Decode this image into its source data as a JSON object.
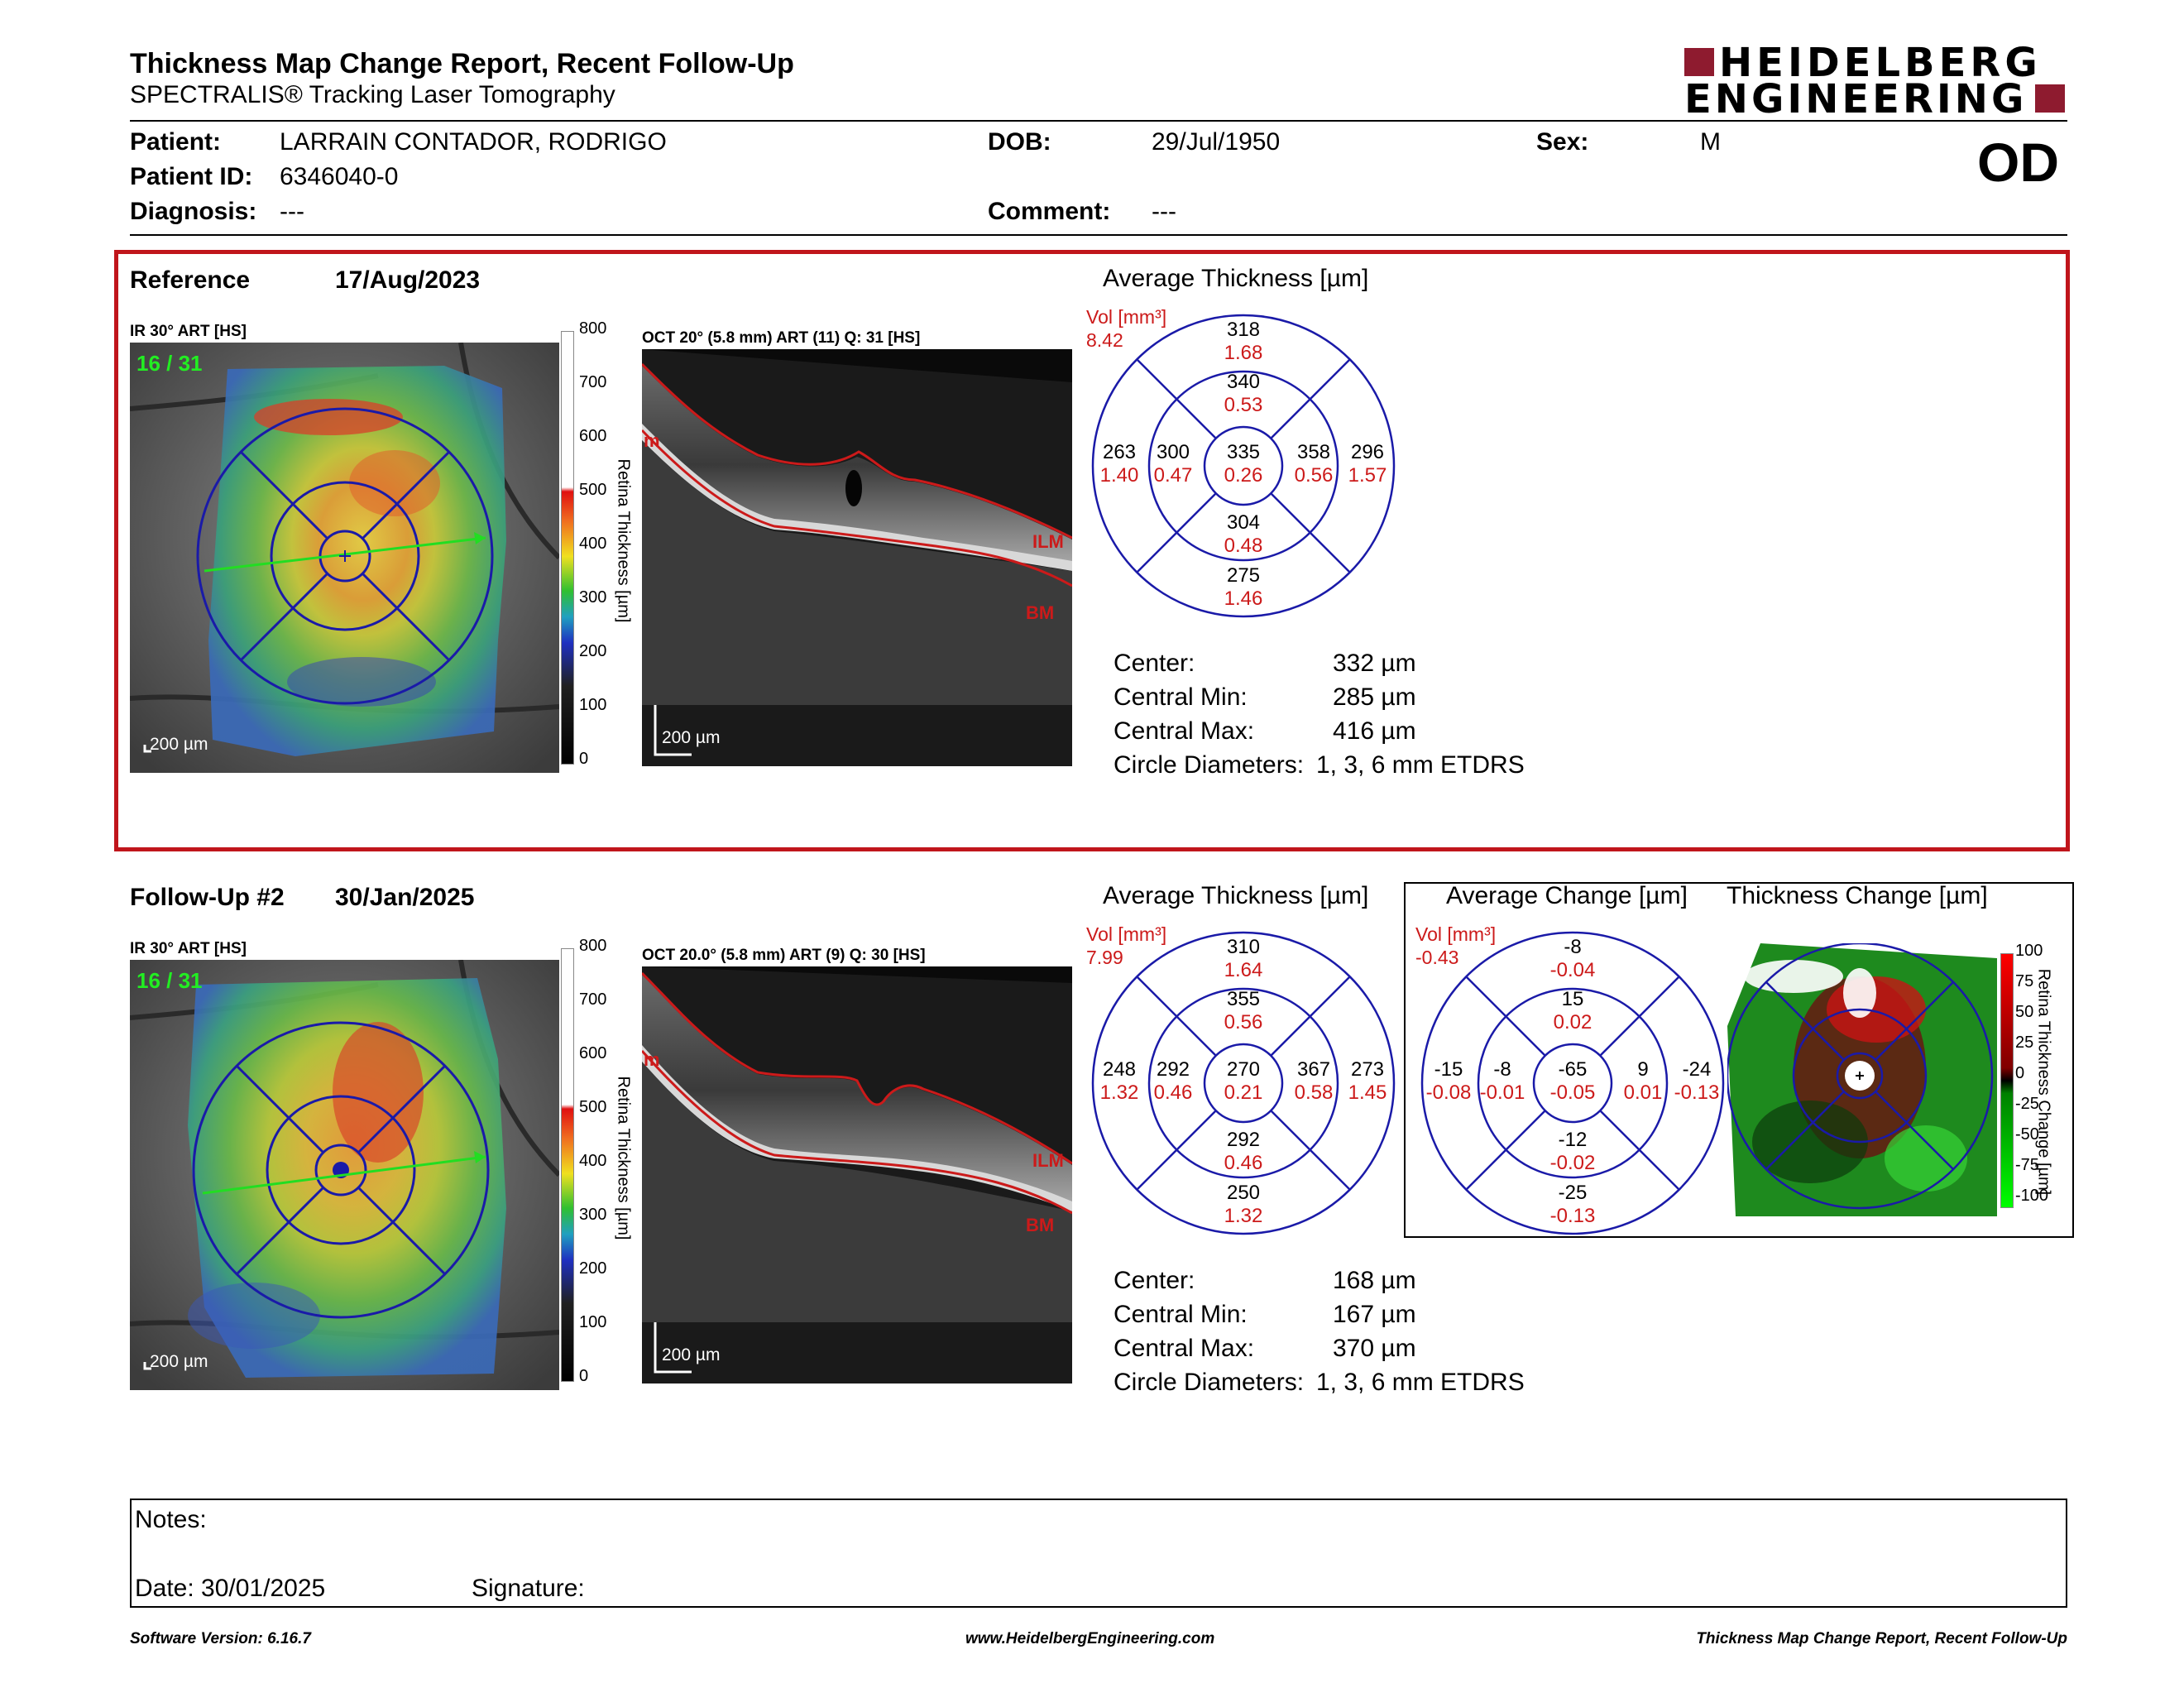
{
  "header": {
    "title": "Thickness Map Change Report, Recent Follow-Up",
    "subtitle": "SPECTRALIS® Tracking Laser Tomography",
    "logo_line1": "HEIDELBERG",
    "logo_line2": "ENGINEERING",
    "eye": "OD"
  },
  "patient": {
    "patient_label": "Patient:",
    "patient_value": "LARRAIN CONTADOR, RODRIGO",
    "id_label": "Patient ID:",
    "id_value": "6346040-0",
    "diagnosis_label": "Diagnosis:",
    "diagnosis_value": "---",
    "dob_label": "DOB:",
    "dob_value": "29/Jul/1950",
    "comment_label": "Comment:",
    "comment_value": "---",
    "sex_label": "Sex:",
    "sex_value": "M"
  },
  "reference": {
    "label": "Reference",
    "date": "17/Aug/2023",
    "ir_title": "IR 30° ART [HS]",
    "ir_counter": "16 / 31",
    "ir_scale": "200 µm",
    "oct_title": "OCT 20° (5.8 mm) ART (11) Q: 31 [HS]",
    "oct_scale": "200 µm",
    "colorbar_ticks": [
      "800",
      "700",
      "600",
      "500",
      "400",
      "300",
      "200",
      "100",
      "0"
    ],
    "colorbar_label": "Retina Thickness [µm]",
    "layer_ilm": "ILM",
    "layer_bm": "BM",
    "layer_m": "m",
    "avg_title": "Average Thickness [µm]",
    "vol_label": "Vol [mm³]",
    "vol_value": "8.42",
    "grid": {
      "outer_top": "318",
      "outer_top_vol": "1.68",
      "inner_top": "340",
      "inner_top_vol": "0.53",
      "outer_left": "263",
      "outer_left_vol": "1.40",
      "inner_left": "300",
      "inner_left_vol": "0.47",
      "center": "335",
      "center_vol": "0.26",
      "inner_right": "358",
      "inner_right_vol": "0.56",
      "outer_right": "296",
      "outer_right_vol": "1.57",
      "inner_bottom": "304",
      "inner_bottom_vol": "0.48",
      "outer_bottom": "275",
      "outer_bottom_vol": "1.46"
    },
    "stats": {
      "center_label": "Center:",
      "center_value": "332 µm",
      "min_label": "Central Min:",
      "min_value": "285 µm",
      "max_label": "Central Max:",
      "max_value": "416 µm",
      "diam_label": "Circle Diameters:",
      "diam_value": "1, 3, 6 mm ETDRS"
    }
  },
  "followup": {
    "label": "Follow-Up #2",
    "date": "30/Jan/2025",
    "ir_title": "IR 30° ART [HS]",
    "ir_counter": "16 / 31",
    "ir_scale": "200 µm",
    "oct_title": "OCT 20.0° (5.8 mm) ART (9) Q: 30 [HS]",
    "oct_scale": "200 µm",
    "colorbar_ticks": [
      "800",
      "700",
      "600",
      "500",
      "400",
      "300",
      "200",
      "100",
      "0"
    ],
    "colorbar_label": "Retina Thickness [µm]",
    "layer_ilm": "ILM",
    "layer_bm": "BM",
    "layer_m": "m",
    "avg_title": "Average Thickness [µm]",
    "vol_label": "Vol [mm³]",
    "vol_value": "7.99",
    "grid": {
      "outer_top": "310",
      "outer_top_vol": "1.64",
      "inner_top": "355",
      "inner_top_vol": "0.56",
      "outer_left": "248",
      "outer_left_vol": "1.32",
      "inner_left": "292",
      "inner_left_vol": "0.46",
      "center": "270",
      "center_vol": "0.21",
      "inner_right": "367",
      "inner_right_vol": "0.58",
      "outer_right": "273",
      "outer_right_vol": "1.45",
      "inner_bottom": "292",
      "inner_bottom_vol": "0.46",
      "outer_bottom": "250",
      "outer_bottom_vol": "1.32"
    },
    "stats": {
      "center_label": "Center:",
      "center_value": "168 µm",
      "min_label": "Central Min:",
      "min_value": "167 µm",
      "max_label": "Central Max:",
      "max_value": "370 µm",
      "diam_label": "Circle Diameters:",
      "diam_value": "1, 3, 6 mm ETDRS"
    },
    "change_title": "Average Change [µm]",
    "change_vol_label": "Vol [mm³]",
    "change_vol_value": "-0.43",
    "change_grid": {
      "outer_top": "-8",
      "outer_top_vol": "-0.04",
      "inner_top": "15",
      "inner_top_vol": "0.02",
      "outer_left": "-15",
      "outer_left_vol": "-0.08",
      "inner_left": "-8",
      "inner_left_vol": "-0.01",
      "center": "-65",
      "center_vol": "-0.05",
      "inner_right": "9",
      "inner_right_vol": "0.01",
      "outer_right": "-24",
      "outer_right_vol": "-0.13",
      "inner_bottom": "-12",
      "inner_bottom_vol": "-0.02",
      "outer_bottom": "-25",
      "outer_bottom_vol": "-0.13"
    },
    "thick_change_title": "Thickness Change [µm]",
    "change_ticks": [
      "100",
      "75",
      "50",
      "25",
      "0",
      "-25",
      "-50",
      "-75",
      "-100"
    ],
    "change_bar_label": "Retina Thickness Change [µm]"
  },
  "notes": {
    "notes_label": "Notes:",
    "date_label": "Date: 30/01/2025",
    "signature_label": "Signature:"
  },
  "footer": {
    "version": "Software Version: 6.16.7",
    "url": "www.HeidelbergEngineering.com",
    "report": "Thickness Map Change Report, Recent Follow-Up"
  },
  "colors": {
    "frame_red": "#c0151b",
    "etdrs_blue": "#1a1aa8",
    "value_red": "#cc1a1a",
    "logo_red": "#8e1b2f"
  }
}
